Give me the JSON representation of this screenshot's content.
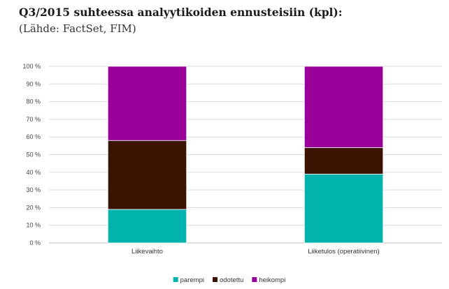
{
  "chart_data": {
    "type": "bar",
    "stacked": true,
    "title": "Q3/2015 suhteessa analyytikoiden ennusteisiin (kpl):",
    "subtitle": "(Lähde: FactSet, FIM)",
    "categories": [
      "Liikevaihto",
      "Liiketulos (operatiivinen)"
    ],
    "series": [
      {
        "name": "parempi",
        "values": [
          19,
          39
        ],
        "color": "#00b3ad"
      },
      {
        "name": "odotettu",
        "values": [
          39,
          15
        ],
        "color": "#3a1400"
      },
      {
        "name": "heikompi",
        "values": [
          42,
          46
        ],
        "color": "#990099"
      }
    ],
    "ylim": [
      0,
      100
    ],
    "yticks": [
      "0 %",
      "10 %",
      "20 %",
      "30 %",
      "40 %",
      "50 %",
      "60 %",
      "70 %",
      "80 %",
      "90 %",
      "100 %"
    ],
    "grid": true,
    "legend": "bottom"
  }
}
